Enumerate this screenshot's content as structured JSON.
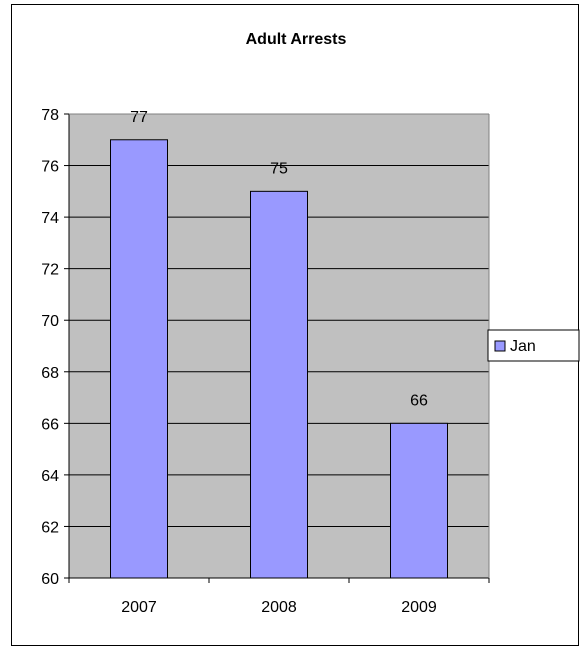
{
  "colors": {
    "plot_background": "#c0c0c0",
    "bar_fill": "#9999ff",
    "bar_stroke": "#000000",
    "gridline": "#000000"
  },
  "chart_data": {
    "type": "bar",
    "title": "Adult Arrests",
    "xlabel": "",
    "ylabel": "",
    "categories": [
      "2007",
      "2008",
      "2009"
    ],
    "series": [
      {
        "name": "Jan",
        "values": [
          77,
          75,
          66
        ]
      }
    ],
    "ylim": [
      60,
      78
    ],
    "yticks": [
      60,
      62,
      64,
      66,
      68,
      70,
      72,
      74,
      76,
      78
    ],
    "grid": true,
    "data_labels": true,
    "legend": "right"
  }
}
